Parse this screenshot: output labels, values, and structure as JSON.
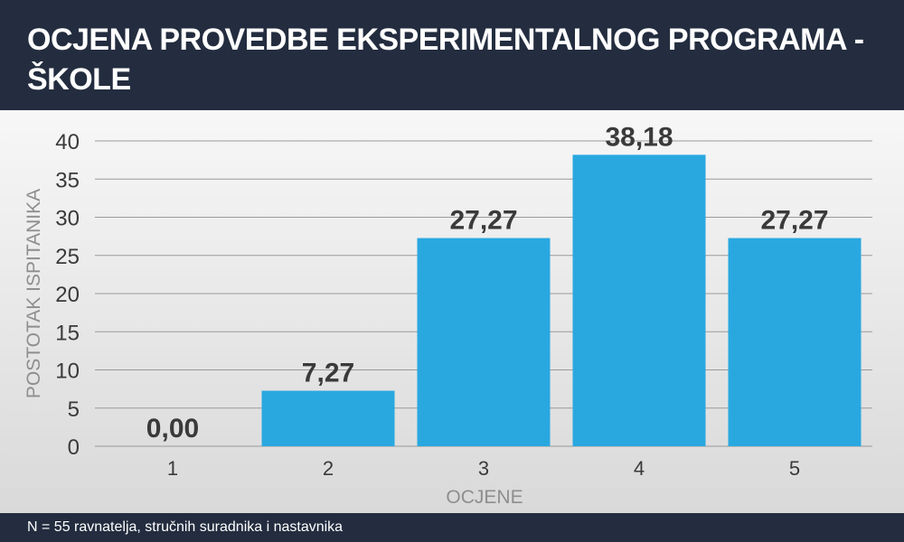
{
  "header": {
    "title": "OCJENA PROVEDBE EKSPERIMENTALNOG PROGRAMA - ŠKOLE"
  },
  "footer": {
    "note": "N = 55 ravnatelja, stručnih suradnika i nastavnika"
  },
  "colors": {
    "header_bg": "#232d3f",
    "bar": "#29a8e0",
    "grid": "#9a9a9a",
    "label": "#3a3a3a",
    "axis_title": "#8e8e8e"
  },
  "chart_data": {
    "type": "bar",
    "title": "OCJENA PROVEDBE EKSPERIMENTALNOG PROGRAMA - ŠKOLE",
    "xlabel": "OCJENE",
    "ylabel": "POSTOTAK ISPITANIKA",
    "categories": [
      "1",
      "2",
      "3",
      "4",
      "5"
    ],
    "values": [
      0,
      7.27,
      27.27,
      38.18,
      27.27
    ],
    "value_labels": [
      "0,00",
      "7,27",
      "27,27",
      "38,18",
      "27,27"
    ],
    "ylim": [
      0,
      40
    ],
    "yticks": [
      0,
      5,
      10,
      15,
      20,
      25,
      30,
      35,
      40
    ],
    "grid": true,
    "legend": "none"
  }
}
